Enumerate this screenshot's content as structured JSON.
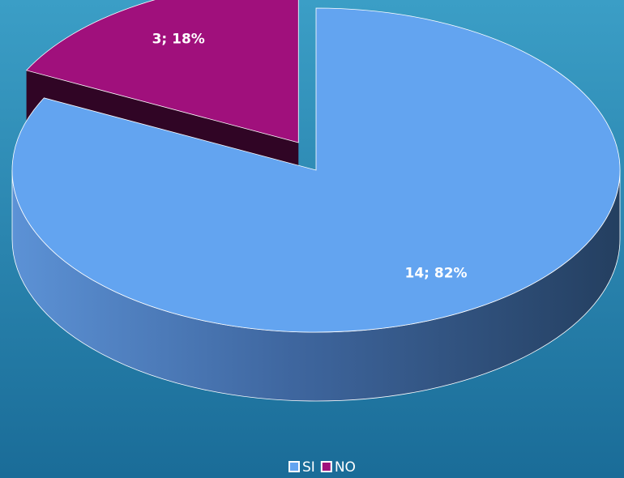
{
  "chart_data": {
    "type": "pie",
    "pie_3d": true,
    "categories": [
      "SI",
      "NO"
    ],
    "values": [
      14,
      3
    ],
    "value_labels": [
      "14; 82%",
      "3; 18%"
    ],
    "colors": [
      "#63a4f0",
      "#a0107c"
    ],
    "legend": "bottom"
  }
}
